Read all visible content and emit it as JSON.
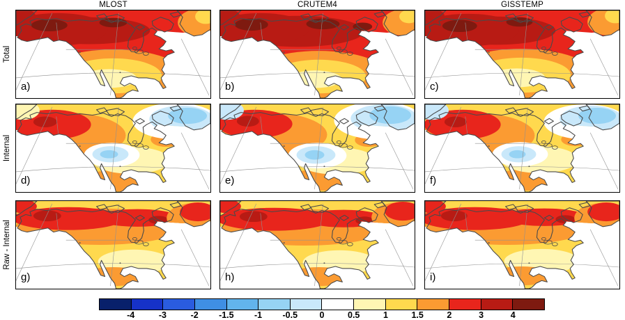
{
  "figure": {
    "column_titles": [
      "MLOST",
      "CRUTEM4",
      "GISSTEMP"
    ],
    "row_labels": [
      "Total",
      "Internal",
      "Raw - Internal"
    ],
    "panel_labels": [
      "a)",
      "b)",
      "c)",
      "d)",
      "e)",
      "f)",
      "g)",
      "h)",
      "i)"
    ]
  },
  "colorbar": {
    "tick_labels": [
      "-4",
      "-3",
      "-2",
      "-1.5",
      "-1",
      "-0.5",
      "0",
      "0.5",
      "1",
      "1.5",
      "2",
      "3",
      "4"
    ],
    "segment_colors": [
      "#08206b",
      "#1632c8",
      "#2a5cdf",
      "#3f8fe4",
      "#62b4ec",
      "#96d3f4",
      "#c9e8fa",
      "#ffffff",
      "#fff6b3",
      "#ffd94e",
      "#fb9b32",
      "#e8251c",
      "#b81b14",
      "#7e1a10"
    ],
    "outline_color": "#000000",
    "coastline_color": "#4a4a4a"
  },
  "chart_data": {
    "type": "heatmap",
    "subtype": "filled-contour-maps",
    "region": "North America",
    "grid": {
      "columns": [
        "MLOST",
        "CRUTEM4",
        "GISSTEMP"
      ],
      "rows": [
        "Total",
        "Internal",
        "Raw - Internal"
      ]
    },
    "colorbar_levels": [
      -4,
      -3,
      -2,
      -1.5,
      -1,
      -0.5,
      0,
      0.5,
      1,
      1.5,
      2,
      3,
      4
    ],
    "legend_position": "bottom",
    "panels": [
      {
        "label": "a)",
        "row": "Total",
        "column": "MLOST",
        "summary": "Widespread strong warming: 3 to >4 over Alaska, northwest and Arctic Canada, 2-3 over most of Canada and the northern US, 0.5-2 over the southern US and Mexico."
      },
      {
        "label": "b)",
        "row": "Total",
        "column": "CRUTEM4",
        "summary": "Pattern similar to MLOST with slightly broader >3 warming across the Canadian Arctic; 0.5-2 over the southern US and Mexico."
      },
      {
        "label": "c)",
        "row": "Total",
        "column": "GISSTEMP",
        "summary": "Strong warming (2 to >4) across Alaska and Canada, 0.5-2 over the southern US and Mexico."
      },
      {
        "label": "d)",
        "row": "Internal",
        "column": "MLOST",
        "summary": "Warming of 2-4 centered on Alaska and northwest Canada, 0.5-2 over most of the continent, weak cooling (-1 to 0) over the central US and near Baffin Bay and Greenland."
      },
      {
        "label": "e)",
        "row": "Internal",
        "column": "CRUTEM4",
        "summary": "Like MLOST internal component: 2-4 over Alaska and northwest Canada, weak cooling over the central US and the Baffin Bay-Greenland region."
      },
      {
        "label": "f)",
        "row": "Internal",
        "column": "GISSTEMP",
        "summary": "Like MLOST internal component with slightly weaker cool patches over the central US and northeastern Canada."
      },
      {
        "label": "g)",
        "row": "Raw - Internal",
        "column": "MLOST",
        "summary": "Residual warming of 2 to >4 along Alaska and Arctic Canada, 1-2 over western Canada and Mexico, 0.5-1.5 over the central and eastern US."
      },
      {
        "label": "h)",
        "row": "Raw - Internal",
        "column": "CRUTEM4",
        "summary": "Similar to MLOST residual: strongest warming along the Arctic margin, 0.5-1.5 over the central and southern US."
      },
      {
        "label": "i)",
        "row": "Raw - Internal",
        "column": "GISSTEMP",
        "summary": "Similar to MLOST residual with slightly warmer southeastern US; strongest warming along Alaska and Arctic Canada."
      }
    ]
  }
}
